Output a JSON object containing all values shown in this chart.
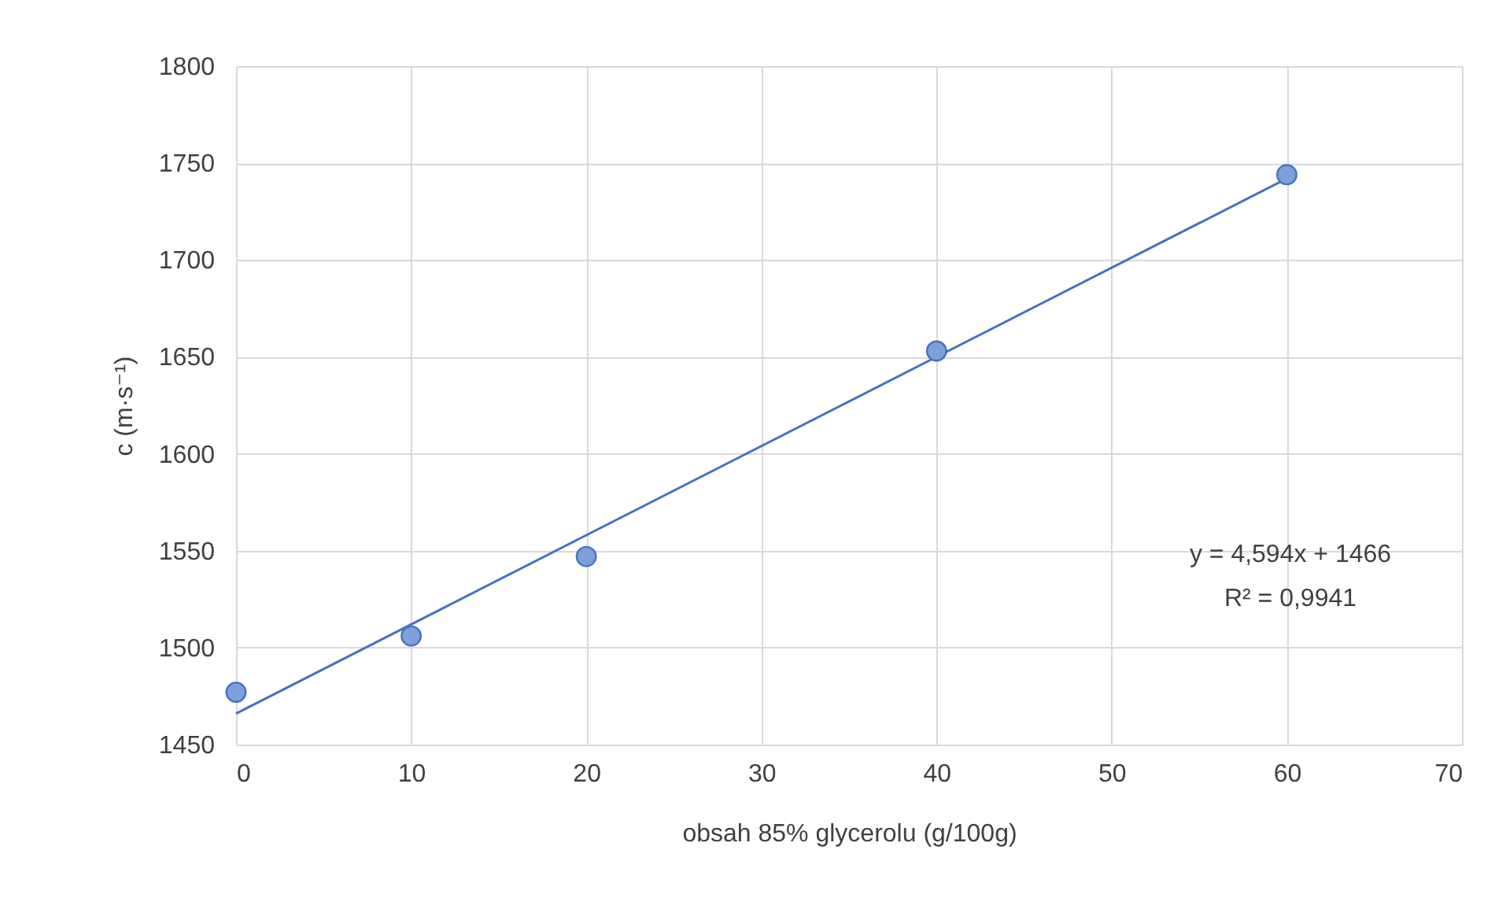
{
  "chart_data": {
    "type": "scatter",
    "xlabel": "obsah 85% glycerolu (g/100g)",
    "ylabel": "c (m·s⁻¹)",
    "x": [
      0,
      10,
      20,
      40,
      60
    ],
    "series": [
      {
        "color": "#7f9fd8",
        "marker": "circle",
        "values": [
          1477,
          1506,
          1547,
          1653,
          1744
        ]
      },
      {
        "type": "line",
        "color": "#4472c4",
        "x": [
          0,
          60
        ],
        "values": [
          1466,
          1742
        ]
      }
    ],
    "xlim": [
      0,
      70
    ],
    "xticks": [
      0,
      10,
      20,
      30,
      40,
      50,
      60,
      70
    ],
    "ylim": [
      1450,
      1800
    ],
    "yticks": [
      1450,
      1500,
      1550,
      1600,
      1650,
      1700,
      1750,
      1800
    ],
    "grid": true,
    "annotations": [
      "y = 4,594x + 1466",
      "R² = 0,9941"
    ]
  }
}
